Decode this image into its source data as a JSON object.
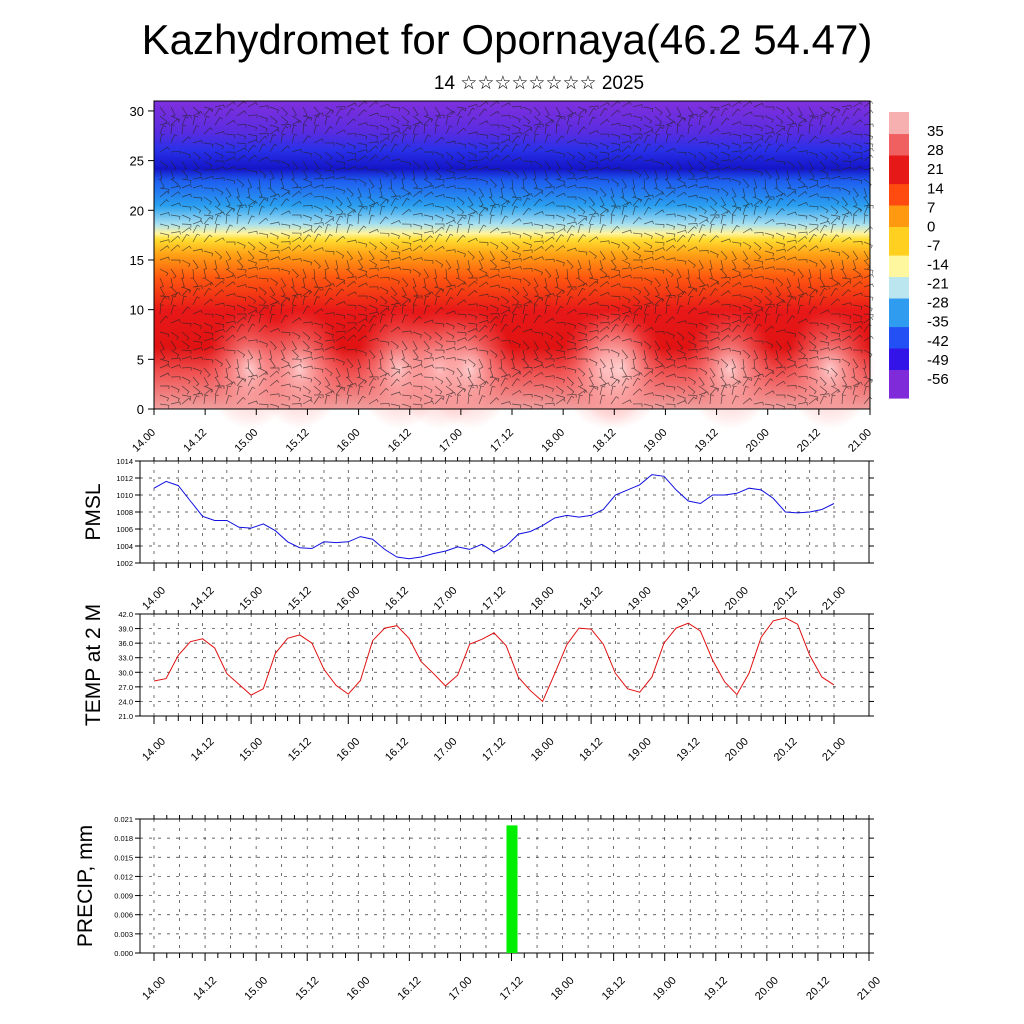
{
  "page": {
    "title": "Kazhydromet for Opornaya(46.2 54.47)",
    "subtitle": "14 ☆☆☆☆☆☆☆☆ 2025"
  },
  "chart_data": [
    {
      "type": "heatmap",
      "title": "",
      "xlabel": "",
      "ylabel": "",
      "x_ticks": [
        "14.00",
        "14.12",
        "15.00",
        "15.12",
        "16.00",
        "16.12",
        "17.00",
        "17.12",
        "18.00",
        "18.12",
        "19.00",
        "19.12",
        "20.00",
        "20.12",
        "21.00"
      ],
      "y_ticks": [
        0,
        5,
        10,
        15,
        20,
        25,
        30
      ],
      "ylim": [
        0,
        31
      ],
      "overlay": "wind barbs",
      "colorbar_labels": [
        35,
        28,
        21,
        14,
        7,
        0,
        -7,
        -14,
        -21,
        -28,
        -35,
        -42,
        -49,
        -56
      ],
      "colorbar_range": [
        -63,
        42
      ],
      "colormap": [
        "#7f2bd9",
        "#3214e8",
        "#2350f5",
        "#2f9cf0",
        "#bce6ef",
        "#fff7a0",
        "#ffd020",
        "#ff9a10",
        "#ff4a10",
        "#e61818",
        "#f06060",
        "#f6b0b0"
      ]
    },
    {
      "type": "line",
      "title": "",
      "xlabel": "",
      "ylabel": "PMSL",
      "ylim": [
        1002,
        1014
      ],
      "y_ticks": [
        1002,
        1004,
        1006,
        1008,
        1010,
        1012,
        1014
      ],
      "x_ticks": [
        "14.00",
        "14.12",
        "15.00",
        "15.12",
        "16.00",
        "16.12",
        "17.00",
        "17.12",
        "18.00",
        "18.12",
        "19.00",
        "19.12",
        "20.00",
        "20.12",
        "21.00"
      ],
      "grid": true,
      "color": "#1010e0",
      "series": [
        {
          "values": [
            1010.8,
            1011.6,
            1011.1,
            1009.3,
            1007.5,
            1007.0,
            1007.0,
            1006.2,
            1006.1,
            1006.6,
            1005.8,
            1004.5,
            1003.8,
            1003.7,
            1004.5,
            1004.4,
            1004.5,
            1005.1,
            1004.8,
            1003.6,
            1002.7,
            1002.5,
            1002.7,
            1003.1,
            1003.4,
            1003.9,
            1003.6,
            1004.2,
            1003.3,
            1004.0,
            1005.4,
            1005.7,
            1006.4,
            1007.3,
            1007.6,
            1007.4,
            1007.6,
            1008.3,
            1010.0,
            1010.6,
            1011.2,
            1012.4,
            1012.2,
            1010.6,
            1009.3,
            1009.0,
            1010.0,
            1010.0,
            1010.2,
            1010.8,
            1010.6,
            1009.6,
            1008.0,
            1007.9,
            1008.0,
            1008.3,
            1009.0
          ]
        }
      ]
    },
    {
      "type": "line",
      "title": "",
      "xlabel": "",
      "ylabel": "TEMP at 2 M",
      "ylim": [
        21.0,
        42.0
      ],
      "y_ticks": [
        "21.0",
        "24.0",
        "27.0",
        "30.0",
        "33.0",
        "36.0",
        "39.0",
        "42.0"
      ],
      "x_ticks": [
        "14.00",
        "14.12",
        "15.00",
        "15.12",
        "16.00",
        "16.12",
        "17.00",
        "17.12",
        "18.00",
        "18.12",
        "19.00",
        "19.12",
        "20.00",
        "20.12",
        "21.00"
      ],
      "grid": true,
      "color": "#e01010",
      "series": [
        {
          "values": [
            28.2,
            28.7,
            33.5,
            36.3,
            36.9,
            35.0,
            29.7,
            27.5,
            25.3,
            26.6,
            33.9,
            37.0,
            37.7,
            36.0,
            30.6,
            27.3,
            25.5,
            28.3,
            36.5,
            39.1,
            39.6,
            37.0,
            32.2,
            29.8,
            27.2,
            29.4,
            35.8,
            36.8,
            38.1,
            35.5,
            29.0,
            26.2,
            24.0,
            29.7,
            35.7,
            39.1,
            38.9,
            35.8,
            29.8,
            26.6,
            25.9,
            29.0,
            36.0,
            39.1,
            40.1,
            38.5,
            32.5,
            28.0,
            25.4,
            29.8,
            37.2,
            40.6,
            41.2,
            39.9,
            33.5,
            29.0,
            27.4
          ]
        }
      ]
    },
    {
      "type": "bar",
      "title": "",
      "xlabel": "",
      "ylabel": "PRECIP, mm",
      "ylim": [
        0.0,
        0.021
      ],
      "y_ticks": [
        "0.000",
        "0.003",
        "0.006",
        "0.009",
        "0.012",
        "0.015",
        "0.018",
        "0.021"
      ],
      "x_ticks": [
        "14.00",
        "14.12",
        "15.00",
        "15.12",
        "16.00",
        "16.12",
        "17.00",
        "17.12",
        "18.00",
        "18.12",
        "19.00",
        "19.12",
        "20.00",
        "20.12",
        "21.00"
      ],
      "grid": true,
      "color": "#00ee00",
      "bars": [
        {
          "x": 28,
          "value": 0.02
        }
      ]
    }
  ]
}
